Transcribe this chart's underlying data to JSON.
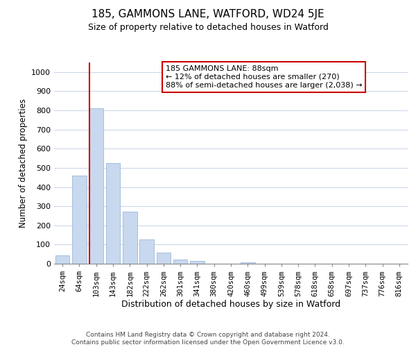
{
  "title": "185, GAMMONS LANE, WATFORD, WD24 5JE",
  "subtitle": "Size of property relative to detached houses in Watford",
  "xlabel": "Distribution of detached houses by size in Watford",
  "ylabel": "Number of detached properties",
  "bar_labels": [
    "24sqm",
    "64sqm",
    "103sqm",
    "143sqm",
    "182sqm",
    "222sqm",
    "262sqm",
    "301sqm",
    "341sqm",
    "380sqm",
    "420sqm",
    "460sqm",
    "499sqm",
    "539sqm",
    "578sqm",
    "618sqm",
    "658sqm",
    "697sqm",
    "737sqm",
    "776sqm",
    "816sqm"
  ],
  "bar_values": [
    45,
    460,
    810,
    525,
    270,
    125,
    57,
    23,
    15,
    0,
    0,
    8,
    0,
    0,
    0,
    0,
    0,
    0,
    0,
    0,
    0
  ],
  "bar_color": "#c8d8ee",
  "bar_edge_color": "#99b8d8",
  "vline_x_index": 1.62,
  "vline_color": "#cc0000",
  "annotation_text": "185 GAMMONS LANE: 88sqm\n← 12% of detached houses are smaller (270)\n88% of semi-detached houses are larger (2,038) →",
  "annotation_box_color": "#ffffff",
  "annotation_box_edge": "#cc0000",
  "ylim": [
    0,
    1050
  ],
  "yticks": [
    0,
    100,
    200,
    300,
    400,
    500,
    600,
    700,
    800,
    900,
    1000
  ],
  "footer_line1": "Contains HM Land Registry data © Crown copyright and database right 2024.",
  "footer_line2": "Contains public sector information licensed under the Open Government Licence v3.0.",
  "background_color": "#ffffff",
  "grid_color": "#ccd8ec"
}
